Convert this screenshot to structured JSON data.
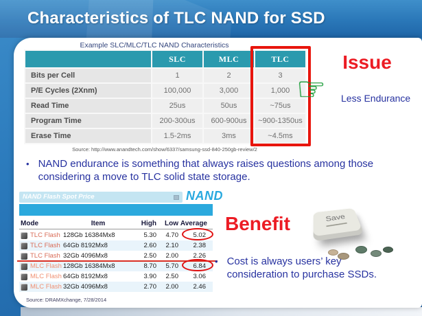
{
  "slide": {
    "title": "Characteristics of TLC NAND for SSD"
  },
  "char_table": {
    "caption": "Example SLC/MLC/TLC NAND Characteristics",
    "columns": [
      "SLC",
      "MLC",
      "TLC"
    ],
    "rows": [
      {
        "label": "Bits per Cell",
        "slc": "1",
        "mlc": "2",
        "tlc": "3"
      },
      {
        "label": "P/E Cycles (2Xnm)",
        "slc": "100,000",
        "mlc": "3,000",
        "tlc": "1,000"
      },
      {
        "label": "Read Time",
        "slc": "25us",
        "mlc": "50us",
        "tlc": "~75us"
      },
      {
        "label": "Program Time",
        "slc": "200-300us",
        "mlc": "600-900us",
        "tlc": "~900-1350us"
      },
      {
        "label": "Erase Time",
        "slc": "1.5-2ms",
        "mlc": "3ms",
        "tlc": "~4.5ms"
      }
    ],
    "source": "Source:  http://www.anandtech.com/show/6337/samsung-ssd-840-250gb-review/2"
  },
  "issue": {
    "heading": "Issue",
    "note": "Less Endurance"
  },
  "bullets": {
    "endurance": "NAND endurance is something that always raises questions among those considering a move to TLC solid state storage.",
    "cost": "Cost is always users’ key consideration to purchase SSDs."
  },
  "price": {
    "title": "NAND Flash Spot Price",
    "logo": "NAND",
    "headers": {
      "mode": "Mode",
      "item": "Item",
      "high": "High",
      "low": "Low",
      "average": "Average"
    },
    "rows": [
      {
        "mode": "TLC Flash",
        "item": "128Gb 16384Mx8",
        "high": "5.30",
        "low": "4.70",
        "avg": "5.02"
      },
      {
        "mode": "TLC Flash",
        "item": "64Gb 8192Mx8",
        "high": "2.60",
        "low": "2.10",
        "avg": "2.38"
      },
      {
        "mode": "TLC Flash",
        "item": "32Gb 4096Mx8",
        "high": "2.50",
        "low": "2.00",
        "avg": "2.26"
      },
      {
        "mode": "MLC Flash",
        "item": "128Gb 16384Mx8",
        "high": "8.70",
        "low": "5.70",
        "avg": "6.84"
      },
      {
        "mode": "MLC Flash",
        "item": "64Gb 8192Mx8",
        "high": "3.90",
        "low": "2.50",
        "avg": "3.06"
      },
      {
        "mode": "MLC Flash",
        "item": "32Gb 4096Mx8",
        "high": "2.70",
        "low": "2.00",
        "avg": "2.46"
      }
    ],
    "source": "Source:  DRAMXchange, 7/28/2014"
  },
  "benefit": {
    "heading": "Benefit",
    "key_label": "Save"
  },
  "icons": {
    "pointing_hand": "☞"
  },
  "colors": {
    "accent_red": "#ec1c24",
    "table_header_teal": "#2b9aae",
    "body_navy": "#2732a0",
    "price_blue_bar": "#2ba9dd",
    "nand_logo_blue": "#29a9df",
    "tlc_row_text": "#d96c57",
    "mlc_row_text": "#f09173",
    "hand_green": "#18a437",
    "header_blue_top": "#3f8fca",
    "header_blue_bottom": "#1f66a8"
  }
}
